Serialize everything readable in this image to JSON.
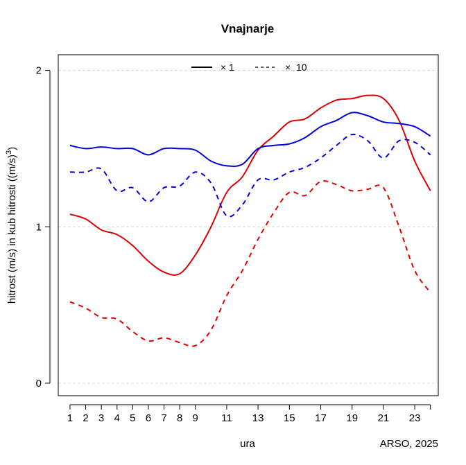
{
  "chart_data": {
    "type": "line",
    "title": "Vnajnarje",
    "xlabel": "ura",
    "ylabel_main": "hitrost (m/s) in kub hitrosti ((m/s)",
    "ylabel_sup": "3",
    "ylabel_close": ")",
    "credit": "ARSO, 2025",
    "xlim": [
      0.25,
      24.5
    ],
    "ylim": [
      -0.08,
      2.1
    ],
    "x_ticks": [
      1,
      2,
      3,
      4,
      5,
      6,
      7,
      8,
      9,
      11,
      13,
      15,
      17,
      19,
      21,
      23,
      24
    ],
    "x_tick_labels": [
      {
        "x": 1,
        "label": "1"
      },
      {
        "x": 2,
        "label": "2"
      },
      {
        "x": 3,
        "label": "3"
      },
      {
        "x": 4,
        "label": "4"
      },
      {
        "x": 5,
        "label": "5"
      },
      {
        "x": 6,
        "label": "6"
      },
      {
        "x": 7,
        "label": "7"
      },
      {
        "x": 8,
        "label": "8"
      },
      {
        "x": 9,
        "label": "9"
      },
      {
        "x": 11,
        "label": "11"
      },
      {
        "x": 13,
        "label": "13"
      },
      {
        "x": 15,
        "label": "15"
      },
      {
        "x": 17,
        "label": "17"
      },
      {
        "x": 19,
        "label": "19"
      },
      {
        "x": 21,
        "label": "21"
      },
      {
        "x": 23,
        "label": "23"
      }
    ],
    "y_ticks": [
      {
        "value": 0,
        "label": "0"
      },
      {
        "value": 1,
        "label": "1"
      },
      {
        "value": 2,
        "label": "2"
      }
    ],
    "grid_y": [
      0,
      1,
      2
    ],
    "legend": {
      "position": "top",
      "entries": [
        {
          "label": "× 1",
          "dash": "solid"
        },
        {
          "label": "×  10",
          "dash": "dashed"
        }
      ]
    },
    "x": [
      1,
      2,
      3,
      4,
      5,
      6,
      7,
      8,
      9,
      10,
      11,
      12,
      13,
      14,
      15,
      16,
      17,
      18,
      19,
      20,
      21,
      22,
      23,
      24
    ],
    "series": [
      {
        "color": "#dd0000",
        "dash": "solid",
        "values": [
          1.08,
          1.05,
          0.98,
          0.95,
          0.88,
          0.78,
          0.71,
          0.7,
          0.82,
          1.0,
          1.22,
          1.32,
          1.49,
          1.58,
          1.67,
          1.69,
          1.76,
          1.81,
          1.82,
          1.84,
          1.82,
          1.68,
          1.42,
          1.23
        ]
      },
      {
        "color": "#dd0000",
        "dash": "dashed",
        "values": [
          0.52,
          0.48,
          0.42,
          0.41,
          0.33,
          0.27,
          0.29,
          0.26,
          0.24,
          0.34,
          0.56,
          0.72,
          0.92,
          1.09,
          1.22,
          1.2,
          1.29,
          1.27,
          1.23,
          1.24,
          1.25,
          1.0,
          0.72,
          0.58
        ]
      },
      {
        "color": "#0000dd",
        "dash": "solid",
        "values": [
          1.52,
          1.5,
          1.51,
          1.5,
          1.5,
          1.46,
          1.5,
          1.5,
          1.49,
          1.42,
          1.39,
          1.4,
          1.5,
          1.52,
          1.53,
          1.57,
          1.64,
          1.68,
          1.73,
          1.71,
          1.67,
          1.66,
          1.64,
          1.58
        ]
      },
      {
        "color": "#0000dd",
        "dash": "dashed",
        "values": [
          1.35,
          1.35,
          1.37,
          1.23,
          1.25,
          1.16,
          1.25,
          1.26,
          1.35,
          1.28,
          1.07,
          1.14,
          1.3,
          1.3,
          1.35,
          1.38,
          1.44,
          1.52,
          1.59,
          1.55,
          1.44,
          1.55,
          1.54,
          1.46
        ]
      }
    ]
  }
}
